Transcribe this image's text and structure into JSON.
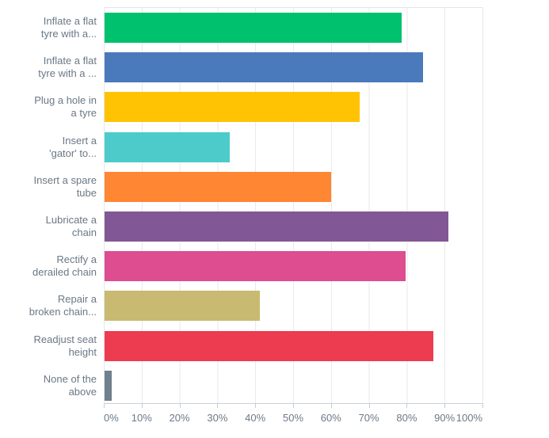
{
  "chart": {
    "background_color": "#ffffff",
    "label_text_color": "#6a7885",
    "tick_text_color": "#6b7988",
    "gridline_color": "#e8eaed",
    "axis_line_color": "#ccd1d6"
  },
  "chart_data": {
    "type": "bar",
    "orientation": "horizontal",
    "title": "",
    "xlabel": "",
    "ylabel": "",
    "xlim": [
      0,
      100
    ],
    "grid": true,
    "legend_position": "none",
    "x_tick_labels": [
      "0%",
      "10%",
      "20%",
      "30%",
      "40%",
      "50%",
      "60%",
      "70%",
      "80%",
      "90%",
      "100%"
    ],
    "categories": [
      "Inflate a flat tyre with a...",
      "Inflate a flat tyre with a ...",
      "Plug a hole in a tyre",
      "Insert a 'gator' to...",
      "Insert a spare tube",
      "Lubricate a chain",
      "Rectify a derailed chain",
      "Repair a broken chain...",
      "Readjust seat height",
      "None of the above"
    ],
    "values": [
      78.5,
      84.1,
      67.3,
      33,
      59.8,
      90.8,
      79.4,
      40.9,
      86.8,
      1.8
    ],
    "series": [
      {
        "label": "Inflate a flat tyre with a...",
        "label_lines": [
          "Inflate a flat",
          "tyre with a..."
        ],
        "value": 78.5,
        "color": "#00c16e"
      },
      {
        "label": "Inflate a flat tyre with a ...",
        "label_lines": [
          "Inflate a flat",
          "tyre with a ..."
        ],
        "value": 84.1,
        "color": "#4a79bc"
      },
      {
        "label": "Plug a hole in a tyre",
        "label_lines": [
          "Plug a hole in",
          "a tyre"
        ],
        "value": 67.3,
        "color": "#ffc303"
      },
      {
        "label": "Insert a 'gator' to...",
        "label_lines": [
          "Insert a",
          "'gator' to..."
        ],
        "value": 33,
        "color": "#4dcbcb"
      },
      {
        "label": "Insert a spare tube",
        "label_lines": [
          "Insert a spare",
          "tube"
        ],
        "value": 59.8,
        "color": "#ff8633"
      },
      {
        "label": "Lubricate a chain",
        "label_lines": [
          "Lubricate a",
          "chain"
        ],
        "value": 90.8,
        "color": "#815795"
      },
      {
        "label": "Rectify a derailed chain",
        "label_lines": [
          "Rectify a",
          "derailed chain"
        ],
        "value": 79.4,
        "color": "#dd4d90"
      },
      {
        "label": "Repair a broken chain...",
        "label_lines": [
          "Repair a",
          "broken chain..."
        ],
        "value": 40.9,
        "color": "#c8ba70"
      },
      {
        "label": "Readjust seat height",
        "label_lines": [
          "Readjust seat",
          "height"
        ],
        "value": 86.8,
        "color": "#ed3b4f"
      },
      {
        "label": "None of the above",
        "label_lines": [
          "None of the",
          "above"
        ],
        "value": 1.8,
        "color": "#70808c"
      }
    ]
  }
}
